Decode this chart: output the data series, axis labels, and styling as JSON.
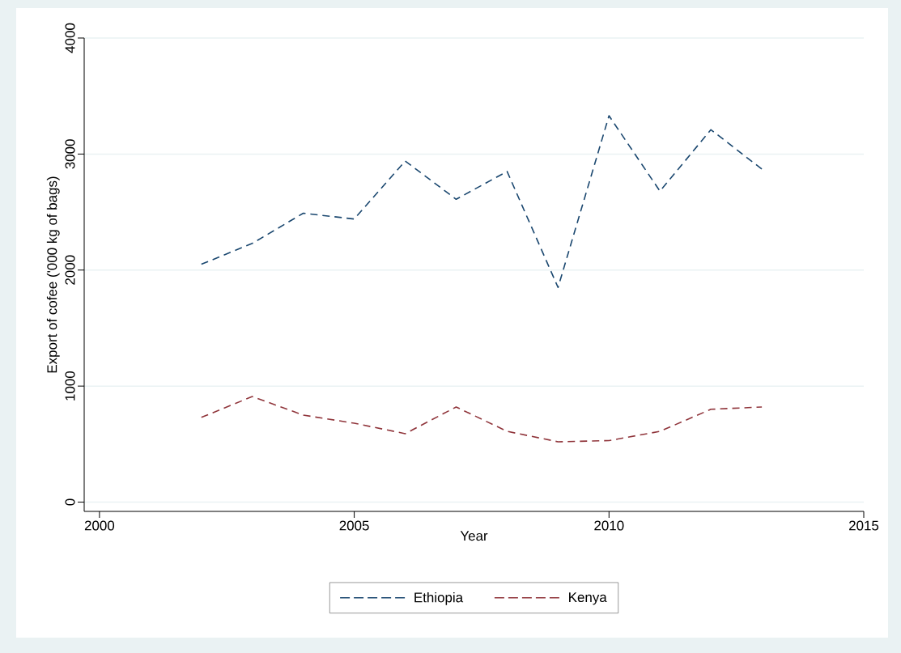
{
  "chart_data": {
    "type": "line",
    "xlabel": "Year",
    "ylabel": "Export of cofee ('000 kg of bags)",
    "x": [
      2002,
      2003,
      2004,
      2005,
      2006,
      2007,
      2008,
      2009,
      2010,
      2011,
      2012,
      2013
    ],
    "series": [
      {
        "name": "Ethiopia",
        "color": "#1a476f",
        "values": [
          2050,
          2230,
          2490,
          2440,
          2940,
          2610,
          2850,
          1850,
          3330,
          2680,
          3210,
          2870
        ]
      },
      {
        "name": "Kenya",
        "color": "#90353b",
        "values": [
          730,
          910,
          750,
          680,
          590,
          820,
          610,
          520,
          530,
          610,
          800,
          820
        ]
      }
    ],
    "xlim": [
      1999.7,
      2015
    ],
    "ylim": [
      -80,
      4000
    ],
    "xticks": [
      2000,
      2005,
      2010,
      2015
    ],
    "yticks": [
      0,
      1000,
      2000,
      3000,
      4000
    ],
    "grid": "y",
    "legend": "bottom",
    "marker": "none",
    "line_style": "dashed"
  }
}
